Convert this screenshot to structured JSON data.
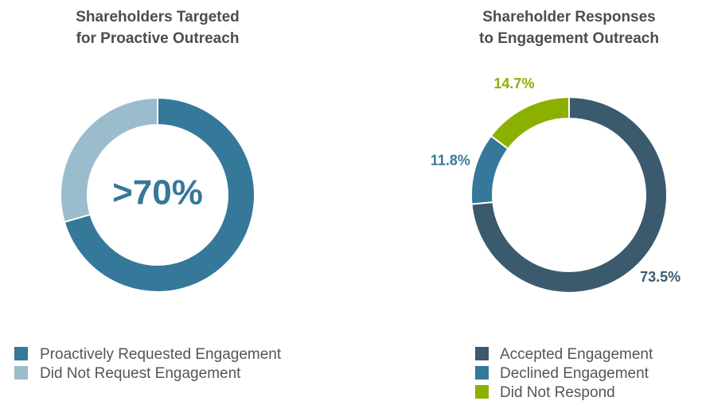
{
  "chart_data": [
    {
      "type": "donut",
      "title": [
        "Shareholders Targeted",
        "for Proactive Outreach"
      ],
      "center_label": ">70%",
      "categories": [
        "Proactively Requested Engagement",
        "Did Not Request Engagement"
      ],
      "values": [
        70.5,
        29.5
      ],
      "colors": [
        "#357899",
        "#9bbccc"
      ]
    },
    {
      "type": "donut",
      "title": [
        "Shareholder Responses",
        "to Engagement Outreach"
      ],
      "categories": [
        "Accepted Engagement",
        "Declined Engagement",
        "Did Not Respond"
      ],
      "values": [
        73.5,
        11.8,
        14.7
      ],
      "value_labels": [
        "73.5%",
        "11.8%",
        "14.7%"
      ],
      "colors": [
        "#3c5a6e",
        "#357899",
        "#8cb000"
      ]
    }
  ]
}
